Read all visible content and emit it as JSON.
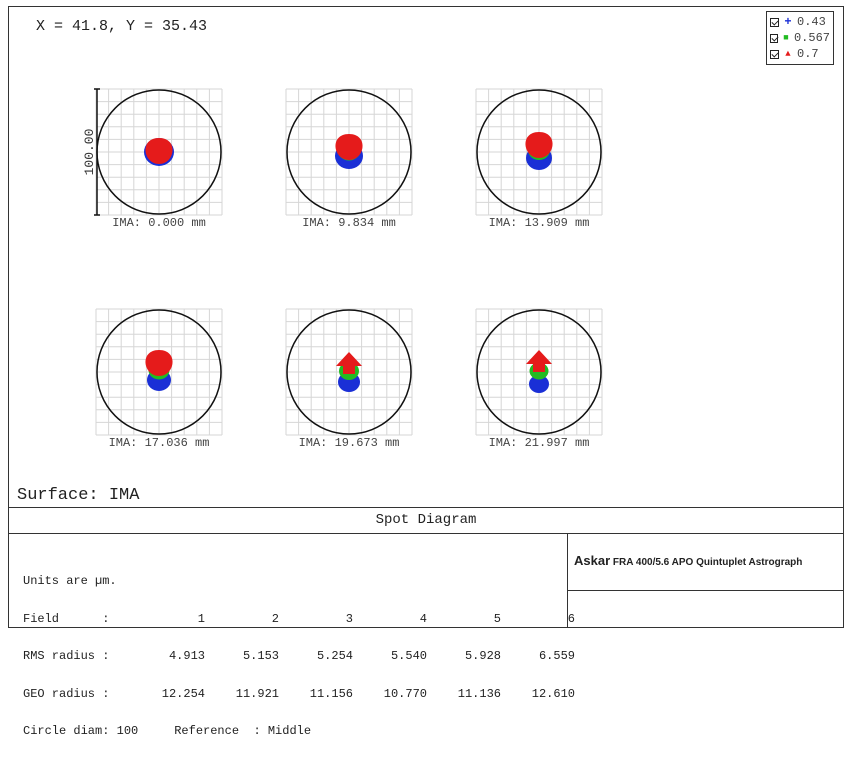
{
  "cursor_readout": "X = 41.8, Y = 35.43",
  "legend": [
    {
      "marker": "+",
      "label": "0.43",
      "color": "#1a2fd6"
    },
    {
      "marker": "■",
      "label": "0.567",
      "color": "#22bb22"
    },
    {
      "marker": "▲",
      "label": "0.7",
      "color": "#e51b1b"
    }
  ],
  "scale_bar_label": "100.00",
  "fields": [
    {
      "label": "IMA: 0.000 mm",
      "blue_offset": 0,
      "red_offset": 0,
      "arrow": false
    },
    {
      "label": "IMA: 9.834 mm",
      "blue_offset": 4,
      "red_offset": -4,
      "arrow": false
    },
    {
      "label": "IMA: 13.909 mm",
      "blue_offset": 6,
      "red_offset": -6,
      "arrow": false
    },
    {
      "label": "IMA: 17.036 mm",
      "blue_offset": 8,
      "red_offset": -8,
      "arrow": false
    },
    {
      "label": "IMA: 19.673 mm",
      "blue_offset": 10,
      "red_offset": -8,
      "arrow": true
    },
    {
      "label": "IMA: 21.997 mm",
      "blue_offset": 12,
      "red_offset": -10,
      "arrow": true
    }
  ],
  "surface_label": "Surface: IMA",
  "diagram_title": "Spot Diagram",
  "units_line": "Units are µm.",
  "field_label": "Field      :",
  "field_values": [
    "1",
    "2",
    "3",
    "4",
    "5",
    "6"
  ],
  "rms_label": "RMS radius :",
  "rms_values": [
    "4.913",
    "5.153",
    "5.254",
    "5.540",
    "5.928",
    "6.559"
  ],
  "geo_label": "GEO radius :",
  "geo_values": [
    "12.254",
    "11.921",
    "11.156",
    "10.770",
    "11.136",
    "12.610"
  ],
  "circle_line": "Circle diam: 100     Reference  : Middle",
  "brand_logo": "Askar",
  "brand_text": "FRA 400/5.6 APO Quintuplet Astrograph"
}
